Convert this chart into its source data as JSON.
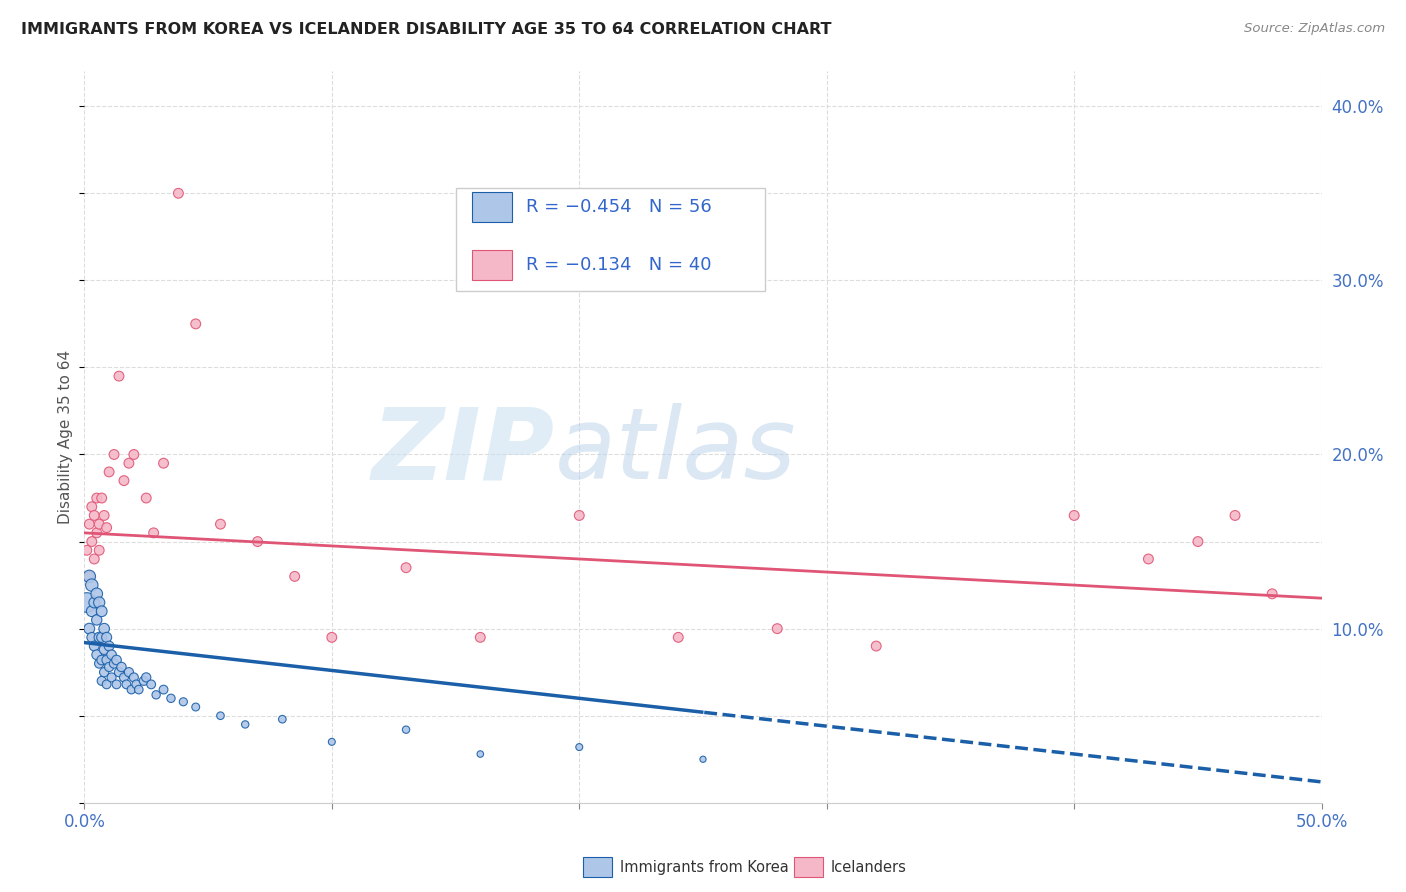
{
  "title": "IMMIGRANTS FROM KOREA VS ICELANDER DISABILITY AGE 35 TO 64 CORRELATION CHART",
  "source": "Source: ZipAtlas.com",
  "ylabel": "Disability Age 35 to 64",
  "xlim": [
    0.0,
    0.5
  ],
  "ylim": [
    0.0,
    0.42
  ],
  "yticks_right": [
    0.1,
    0.2,
    0.3,
    0.4
  ],
  "ytick_right_labels": [
    "10.0%",
    "20.0%",
    "30.0%",
    "40.0%"
  ],
  "korea_color": "#aec6e8",
  "iceland_color": "#f5b8c8",
  "trend_korea_color": "#1a5fa8",
  "trend_iceland_color": "#e05575",
  "watermark_zip": "ZIP",
  "watermark_atlas": "atlas",
  "korea_x": [
    0.001,
    0.002,
    0.002,
    0.003,
    0.003,
    0.003,
    0.004,
    0.004,
    0.005,
    0.005,
    0.005,
    0.006,
    0.006,
    0.006,
    0.007,
    0.007,
    0.007,
    0.007,
    0.008,
    0.008,
    0.008,
    0.009,
    0.009,
    0.009,
    0.01,
    0.01,
    0.011,
    0.011,
    0.012,
    0.013,
    0.013,
    0.014,
    0.015,
    0.016,
    0.017,
    0.018,
    0.019,
    0.02,
    0.021,
    0.022,
    0.024,
    0.025,
    0.027,
    0.029,
    0.032,
    0.035,
    0.04,
    0.045,
    0.055,
    0.065,
    0.08,
    0.1,
    0.13,
    0.16,
    0.2,
    0.25
  ],
  "korea_y": [
    0.115,
    0.13,
    0.1,
    0.125,
    0.11,
    0.095,
    0.115,
    0.09,
    0.12,
    0.105,
    0.085,
    0.115,
    0.095,
    0.08,
    0.11,
    0.095,
    0.082,
    0.07,
    0.1,
    0.088,
    0.075,
    0.095,
    0.082,
    0.068,
    0.09,
    0.078,
    0.085,
    0.072,
    0.08,
    0.082,
    0.068,
    0.075,
    0.078,
    0.072,
    0.068,
    0.075,
    0.065,
    0.072,
    0.068,
    0.065,
    0.07,
    0.072,
    0.068,
    0.062,
    0.065,
    0.06,
    0.058,
    0.055,
    0.05,
    0.045,
    0.048,
    0.035,
    0.042,
    0.028,
    0.032,
    0.025
  ],
  "korea_size": [
    200,
    80,
    60,
    80,
    60,
    50,
    60,
    50,
    70,
    55,
    50,
    65,
    55,
    45,
    60,
    52,
    48,
    42,
    58,
    50,
    44,
    52,
    46,
    40,
    50,
    44,
    48,
    42,
    46,
    48,
    40,
    44,
    46,
    42,
    40,
    44,
    38,
    42,
    40,
    38,
    42,
    44,
    40,
    36,
    40,
    36,
    34,
    32,
    30,
    28,
    30,
    25,
    28,
    22,
    25,
    20
  ],
  "iceland_x": [
    0.001,
    0.002,
    0.002,
    0.003,
    0.003,
    0.004,
    0.004,
    0.005,
    0.005,
    0.006,
    0.006,
    0.007,
    0.008,
    0.009,
    0.01,
    0.012,
    0.014,
    0.016,
    0.018,
    0.02,
    0.025,
    0.028,
    0.032,
    0.038,
    0.045,
    0.055,
    0.07,
    0.085,
    0.1,
    0.13,
    0.16,
    0.2,
    0.24,
    0.28,
    0.32,
    0.4,
    0.43,
    0.45,
    0.465,
    0.48
  ],
  "iceland_y": [
    0.145,
    0.16,
    0.13,
    0.17,
    0.15,
    0.165,
    0.14,
    0.175,
    0.155,
    0.16,
    0.145,
    0.175,
    0.165,
    0.158,
    0.19,
    0.2,
    0.245,
    0.185,
    0.195,
    0.2,
    0.175,
    0.155,
    0.195,
    0.35,
    0.275,
    0.16,
    0.15,
    0.13,
    0.095,
    0.135,
    0.095,
    0.165,
    0.095,
    0.1,
    0.09,
    0.165,
    0.14,
    0.15,
    0.165,
    0.12
  ],
  "iceland_size": [
    50,
    50,
    50,
    50,
    50,
    50,
    50,
    50,
    50,
    50,
    50,
    50,
    50,
    50,
    50,
    50,
    50,
    50,
    50,
    50,
    50,
    50,
    50,
    50,
    50,
    50,
    50,
    50,
    50,
    50,
    50,
    50,
    50,
    50,
    50,
    50,
    50,
    50,
    50,
    50
  ],
  "trend_korea_intercept": 0.092,
  "trend_korea_slope": -0.16,
  "trend_iceland_intercept": 0.155,
  "trend_iceland_slope": -0.075
}
